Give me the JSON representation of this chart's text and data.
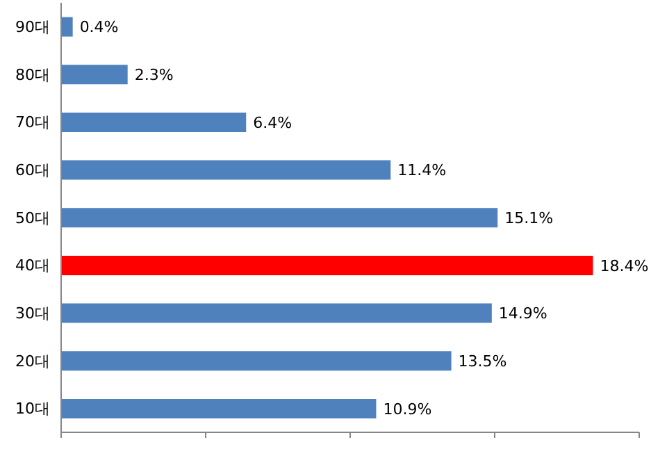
{
  "chart_data": {
    "type": "bar",
    "orientation": "horizontal",
    "categories": [
      "90대",
      "80대",
      "70대",
      "60대",
      "50대",
      "40대",
      "30대",
      "20대",
      "10대"
    ],
    "values": [
      0.4,
      2.3,
      6.4,
      11.4,
      15.1,
      18.4,
      14.9,
      13.5,
      10.9
    ],
    "colors": [
      "#4f81bd",
      "#4f81bd",
      "#4f81bd",
      "#4f81bd",
      "#4f81bd",
      "#ff0000",
      "#4f81bd",
      "#4f81bd",
      "#4f81bd"
    ],
    "value_labels": [
      "0.4%",
      "2.3%",
      "6.4%",
      "11.4%",
      "15.1%",
      "18.4%",
      "14.9%",
      "13.5%",
      "10.9%"
    ],
    "xlim": [
      0,
      20
    ],
    "xticks": [
      {
        "value": 0,
        "label": null
      },
      {
        "value": 5,
        "label": null
      },
      {
        "value": 10,
        "label": null
      },
      {
        "value": 15,
        "label": null
      },
      {
        "value": 20,
        "label": null
      }
    ],
    "tick_labels": "y",
    "grid": false,
    "legend": false
  }
}
